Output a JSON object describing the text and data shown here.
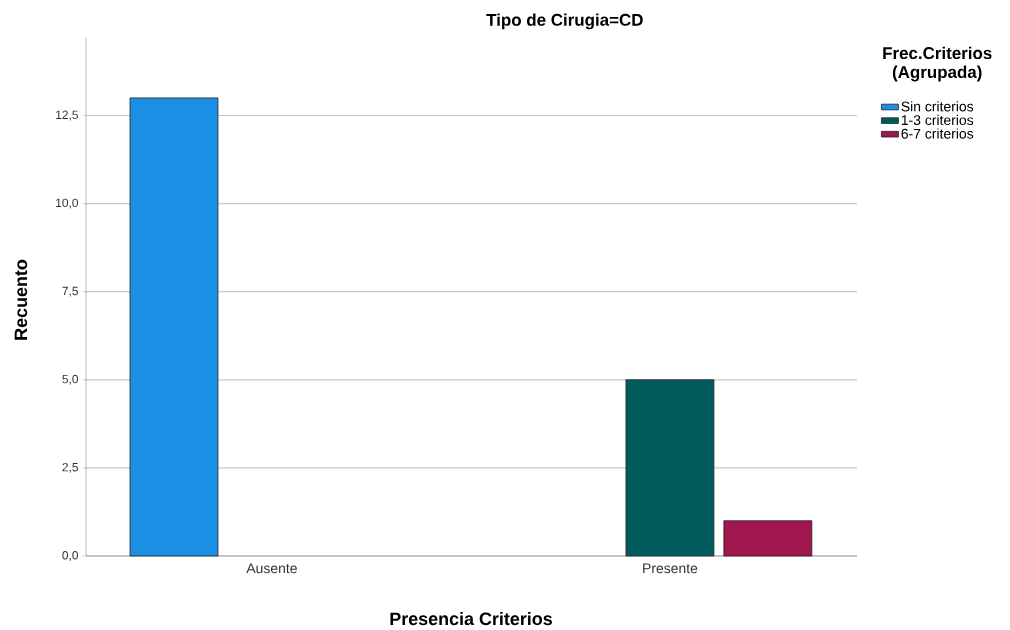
{
  "chart_data": {
    "type": "bar",
    "title": "Tipo de Cirugia=CD",
    "xlabel": "Presencia Criterios",
    "ylabel": "Recuento",
    "legend_title": "Frec.Criterios (Agrupada)",
    "categories": [
      "Ausente",
      "Presente"
    ],
    "series": [
      {
        "name": "Sin criterios",
        "color": "#1a8fe3",
        "values": [
          13,
          null
        ]
      },
      {
        "name": "1-3 criterios",
        "color": "#005c5c",
        "values": [
          null,
          5
        ]
      },
      {
        "name": "6-7 criterios",
        "color": "#a0164e",
        "values": [
          null,
          1
        ]
      }
    ],
    "ylim": [
      0,
      14.7
    ],
    "yticks": [
      {
        "value": 0,
        "label": "0,0"
      },
      {
        "value": 2.5,
        "label": "2,5"
      },
      {
        "value": 5,
        "label": "5,0"
      },
      {
        "value": 7.5,
        "label": "7,5"
      },
      {
        "value": 10,
        "label": "10,0"
      },
      {
        "value": 12.5,
        "label": "12,5"
      }
    ],
    "grid": "y",
    "legend": "top right"
  }
}
